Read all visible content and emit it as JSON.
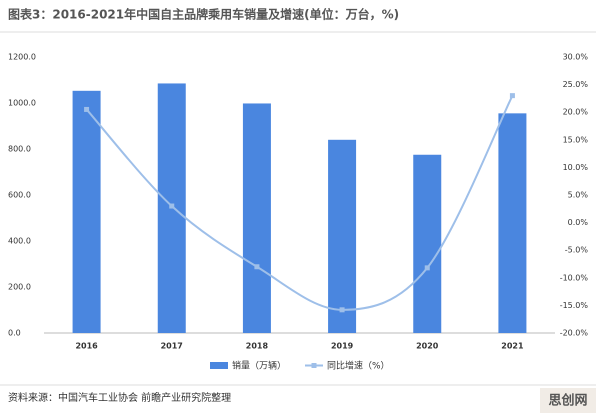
{
  "chart_data": {
    "type": "bar-line",
    "title": "图表3：2016-2021年中国自主品牌乘用车销量及增速(单位：万台，%)",
    "categories": [
      "2016",
      "2017",
      "2018",
      "2019",
      "2020",
      "2021"
    ],
    "series": [
      {
        "name": "销量（万辆）",
        "type": "bar",
        "color": "#4a86df",
        "values": [
          1053,
          1085,
          998,
          840,
          775,
          955
        ]
      },
      {
        "name": "同比增速（%）",
        "type": "line",
        "axis": "y2",
        "color": "#9ebfe9",
        "values": [
          20.5,
          3.0,
          -8.0,
          -15.8,
          -8.2,
          23.0
        ]
      }
    ],
    "ylim": [
      0,
      1200
    ],
    "yticks": [
      {
        "value": 0,
        "label": "0.0"
      },
      {
        "value": 200,
        "label": "200.0"
      },
      {
        "value": 400,
        "label": "400.0"
      },
      {
        "value": 600,
        "label": "600.0"
      },
      {
        "value": 800,
        "label": "800.0"
      },
      {
        "value": 1000,
        "label": "1000.0"
      },
      {
        "value": 1200,
        "label": "1200.0"
      }
    ],
    "y2lim": [
      -20,
      30
    ],
    "y2ticks": [
      {
        "value": -20,
        "label": "-20.0%"
      },
      {
        "value": -15,
        "label": "-15.0%"
      },
      {
        "value": -10,
        "label": "-10.0%"
      },
      {
        "value": -5,
        "label": "-5.0%"
      },
      {
        "value": 0,
        "label": "0.0%"
      },
      {
        "value": 5,
        "label": "5.0%"
      },
      {
        "value": 10,
        "label": "10.0%"
      },
      {
        "value": 15,
        "label": "15.0%"
      },
      {
        "value": 20,
        "label": "20.0%"
      },
      {
        "value": 25,
        "label": "25.0%"
      },
      {
        "value": 30,
        "label": "30.0%"
      }
    ],
    "source": "资料来源：中国汽车工业协会 前瞻产业研究院整理",
    "logo": "思创网"
  }
}
